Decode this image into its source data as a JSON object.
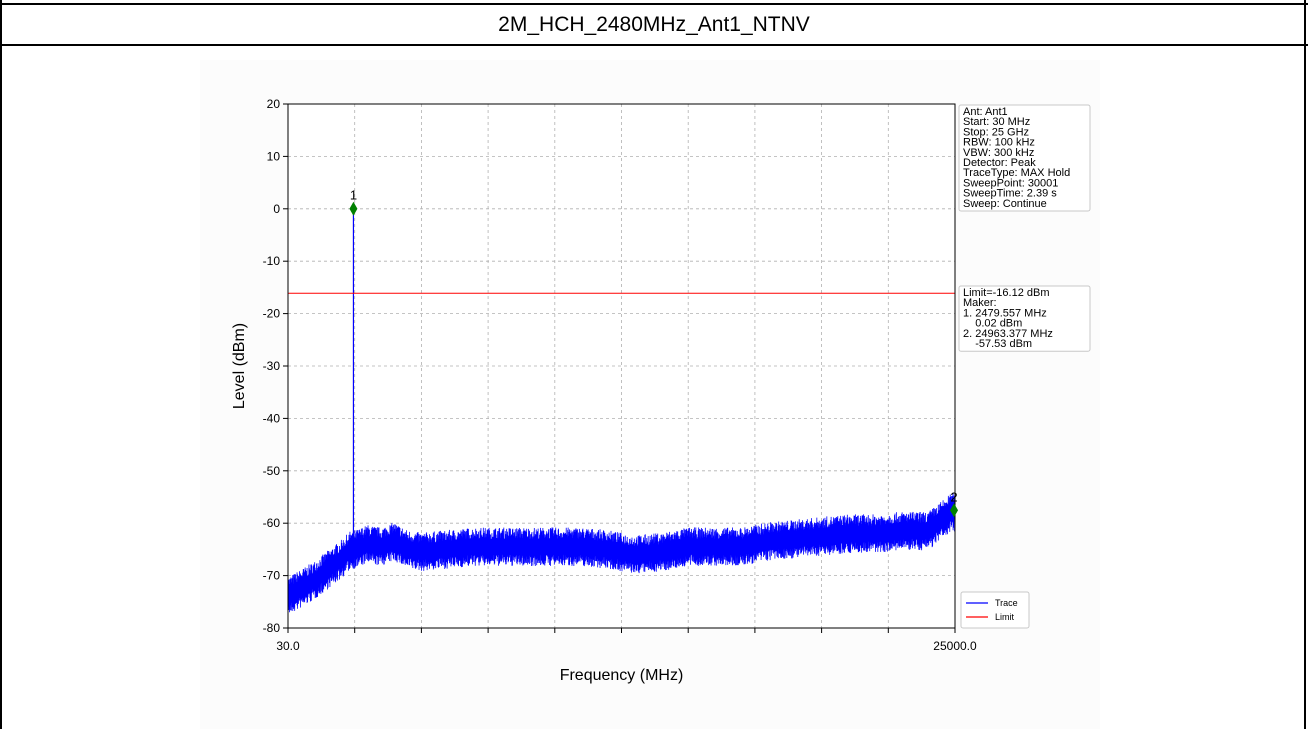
{
  "page_title": "2M_HCH_2480MHz_Ant1_NTNV",
  "chart_data": {
    "type": "line",
    "title": "",
    "xlabel": "Frequency (MHz)",
    "ylabel": "Level (dBm)",
    "xlim": [
      30.0,
      25000.0
    ],
    "ylim": [
      -80,
      20
    ],
    "x_tick_labels": [
      "30.0",
      "25000.0"
    ],
    "x_minor_ticks": 9,
    "y_ticks": [
      20,
      10,
      0,
      -10,
      -20,
      -30,
      -40,
      -50,
      -60,
      -70,
      -80
    ],
    "grid": true,
    "limit_dbm": -16.12,
    "series": [
      {
        "name": "Trace",
        "color": "#0000ff",
        "x": [
          30,
          1000,
          2000,
          2400,
          2479.557,
          2560,
          3000,
          3500,
          4000,
          4500,
          5000,
          6000,
          7000,
          8000,
          9000,
          10000,
          11000,
          12000,
          13000,
          14000,
          15000,
          16000,
          17000,
          18000,
          19000,
          20000,
          21000,
          22000,
          23000,
          24000,
          24963.377,
          25000
        ],
        "y": [
          -74,
          -71,
          -67,
          -65,
          0.02,
          -65,
          -64,
          -64.5,
          -63.5,
          -65,
          -65.5,
          -65,
          -64.5,
          -64.5,
          -64.5,
          -64.5,
          -64.5,
          -65,
          -66,
          -65.5,
          -64.5,
          -64.5,
          -64.5,
          -63.5,
          -63,
          -62.5,
          -62,
          -62,
          -61.5,
          -61.5,
          -57.53,
          -61.5
        ]
      },
      {
        "name": "Limit",
        "color": "#ff0000",
        "x": [
          30,
          25000
        ],
        "y": [
          -16.12,
          -16.12
        ]
      }
    ],
    "markers": [
      {
        "label": "1",
        "x": 2479.557,
        "y": 0.02,
        "color": "#008000"
      },
      {
        "label": "2",
        "x": 24963.377,
        "y": -57.53,
        "color": "#008000"
      }
    ],
    "info_box": [
      "Ant: Ant1",
      "Start: 30 MHz",
      "Stop: 25 GHz",
      "RBW: 100 kHz",
      "VBW: 300 kHz",
      "Detector: Peak",
      "TraceType: MAX Hold",
      "SweepPoint: 30001",
      "SweepTime: 2.39 s",
      "Sweep: Continue"
    ],
    "marker_box": [
      "Limit=-16.12 dBm",
      "Maker:",
      "1. 2479.557 MHz",
      "    0.02 dBm",
      "2. 24963.377 MHz",
      "    -57.53 dBm"
    ],
    "legend": [
      "Trace",
      "Limit"
    ],
    "legend_position": "lower-right-outside"
  }
}
